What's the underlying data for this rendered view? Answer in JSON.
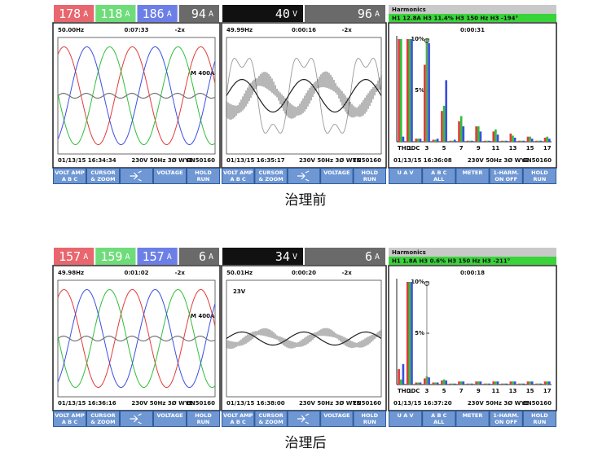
{
  "screens": [
    {
      "caption": "治理前",
      "scopes": [
        {
          "readings": [
            {
              "text": "178",
              "unit": "A",
              "color": "#e8666e"
            },
            {
              "text": "118",
              "unit": "A",
              "color": "#6fdc7a"
            },
            {
              "text": "186",
              "unit": "A",
              "color": "#6c7fe6"
            },
            {
              "text": "94",
              "unit": "A",
              "color": "#6a6a6a"
            }
          ],
          "freq": "50.00Hz",
          "time": "0:07:33",
          "zoom": "-2x",
          "scale": "M 400A",
          "wave": "three-phase",
          "date": "01/13/15 16:34:34",
          "setup": "230V 50Hz 3Ø WYE",
          "std": "EN50160",
          "keys": [
            [
              "VOLT AMP",
              "A B C"
            ],
            [
              "CURSOR",
              "& ZOOM"
            ],
            [
              "VOLTAGE"
            ],
            [
              "HOLD",
              "RUN"
            ]
          ]
        },
        {
          "readings": [
            {
              "text": "40",
              "unit": "V",
              "color": "#111111"
            },
            {
              "text": "96",
              "unit": "A",
              "color": "#6a6a6a"
            }
          ],
          "freq": "49.99Hz",
          "time": "0:00:16",
          "zoom": "-2x",
          "wave": "noisy-large",
          "date": "01/13/15 16:35:17",
          "setup": "230V 50Hz 3Ø WYE",
          "std": "EN50160",
          "keys": [
            [
              "VOLT AMP",
              "A B C"
            ],
            [
              "CURSOR",
              "& ZOOM"
            ],
            [
              "VOLTAGE"
            ],
            [
              "HOLD",
              "RUN"
            ]
          ]
        }
      ],
      "harmonics": {
        "title": "Harmonics",
        "info": "H1  12.8A   H3  11.4%   H3  150 Hz   H3  -194°",
        "time": "0:00:31",
        "date": "01/13/15 16:36:08",
        "setup": "230V 50Hz 3Ø WYE",
        "std": "EN50160",
        "keys": [
          [
            "U A V"
          ],
          [
            "A B C",
            "ALL"
          ],
          [
            "METER"
          ],
          [
            "1-HARM.",
            "ON OFF"
          ],
          [
            "HOLD",
            "RUN"
          ]
        ],
        "chart_data": {
          "type": "bar",
          "categories": [
            "THDDC",
            "1",
            null,
            "3",
            null,
            "5",
            null,
            "7",
            null,
            "9",
            null,
            "11",
            null,
            "13",
            null,
            "15",
            null,
            "17"
          ],
          "ylim": [
            0,
            10
          ],
          "yticks": [
            {
              "value": 10,
              "label": "10%"
            },
            {
              "value": 5,
              "label": "5%"
            }
          ],
          "series": [
            {
              "color": "#e23a3a",
              "values": [
                10,
                10,
                0.3,
                7.5,
                0.2,
                3,
                0.1,
                2,
                0.1,
                1.5,
                0.1,
                1,
                0.1,
                0.8,
                0.1,
                0.5,
                0.1,
                0.4
              ]
            },
            {
              "color": "#2fbf3a",
              "values": [
                10,
                10,
                0.3,
                10,
                0.2,
                3.5,
                0.1,
                2.5,
                0.1,
                1.5,
                0.1,
                1.2,
                0.1,
                0.6,
                0.1,
                0.5,
                0.1,
                0.5
              ]
            },
            {
              "color": "#3a4fe0",
              "values": [
                0.5,
                10,
                0.3,
                9.6,
                0.3,
                6,
                0.2,
                1.5,
                0.1,
                1,
                0.1,
                0.7,
                0.1,
                0.4,
                0.1,
                0.3,
                0.1,
                0.3
              ]
            }
          ]
        }
      }
    },
    {
      "caption": "治理后",
      "scopes": [
        {
          "readings": [
            {
              "text": "157",
              "unit": "A",
              "color": "#e8666e"
            },
            {
              "text": "159",
              "unit": "A",
              "color": "#6fdc7a"
            },
            {
              "text": "157",
              "unit": "A",
              "color": "#6c7fe6"
            },
            {
              "text": "6",
              "unit": "A",
              "color": "#6a6a6a"
            }
          ],
          "freq": "49.98Hz",
          "time": "0:01:02",
          "zoom": "-2x",
          "scale": "M 400A",
          "wave": "three-phase",
          "date": "01/13/15 16:36:16",
          "setup": "230V 50Hz 3Ø WYE",
          "std": "EN50160",
          "keys": [
            [
              "VOLT AMP",
              "A B C"
            ],
            [
              "CURSOR",
              "& ZOOM"
            ],
            [
              "VOLTAGE"
            ],
            [
              "HOLD",
              "RUN"
            ]
          ]
        },
        {
          "readings": [
            {
              "text": "34",
              "unit": "V",
              "color": "#111111"
            },
            {
              "text": "6",
              "unit": "A",
              "color": "#6a6a6a"
            }
          ],
          "freq": "50.01Hz",
          "time": "0:00:20",
          "zoom": "-2x",
          "scale": "23V",
          "wave": "noisy-small",
          "date": "01/13/15 16:38:00",
          "setup": "230V 50Hz 3Ø WYE",
          "std": "EN50160",
          "keys": [
            [
              "VOLT AMP",
              "A B C"
            ],
            [
              "CURSOR",
              "& ZOOM"
            ],
            [
              "VOLTAGE"
            ],
            [
              "HOLD",
              "RUN"
            ]
          ]
        }
      ],
      "harmonics": {
        "title": "Harmonics",
        "info": "H1  1.8A   H3  0.6%   H3  150 Hz   H3  -211°",
        "time": "0:00:18",
        "date": "01/13/15 16:37:20",
        "setup": "230V 50Hz 3Ø WYE",
        "std": "EN50160",
        "keys": [
          [
            "U A V"
          ],
          [
            "A B C",
            "ALL"
          ],
          [
            "METER"
          ],
          [
            "1-HARM.",
            "ON OFF"
          ],
          [
            "HOLD",
            "RUN"
          ]
        ],
        "chart_data": {
          "type": "bar",
          "categories": [
            "THDDC",
            "1",
            null,
            "3",
            null,
            "5",
            null,
            "7",
            null,
            "9",
            null,
            "11",
            null,
            "13",
            null,
            "15",
            null,
            "17"
          ],
          "ylim": [
            0,
            10
          ],
          "yticks": [
            {
              "value": 10,
              "label": "10%"
            },
            {
              "value": 5,
              "label": "5%"
            }
          ],
          "series": [
            {
              "color": "#e23a3a",
              "values": [
                1.5,
                10,
                0.2,
                0.6,
                0.2,
                0.4,
                0.1,
                0.3,
                0.1,
                0.3,
                0.1,
                0.3,
                0.1,
                0.3,
                0.1,
                0.3,
                0.1,
                0.3
              ]
            },
            {
              "color": "#2fbf3a",
              "values": [
                0.5,
                10,
                0.2,
                0.8,
                0.2,
                0.5,
                0.1,
                0.3,
                0.1,
                0.3,
                0.1,
                0.3,
                0.1,
                0.3,
                0.1,
                0.3,
                0.1,
                0.3
              ]
            },
            {
              "color": "#3a4fe0",
              "values": [
                2,
                10,
                0.2,
                0.7,
                0.2,
                0.4,
                0.1,
                0.3,
                0.1,
                0.3,
                0.1,
                0.3,
                0.1,
                0.3,
                0.1,
                0.3,
                0.1,
                0.3
              ]
            }
          ]
        }
      }
    }
  ]
}
